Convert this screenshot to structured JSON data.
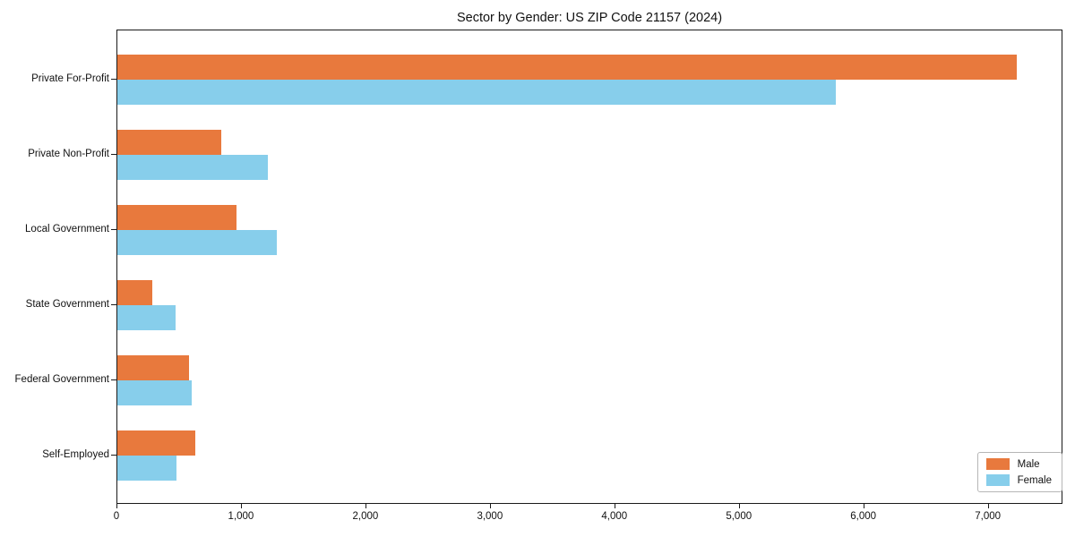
{
  "chart_data": {
    "type": "bar",
    "orientation": "horizontal",
    "title": "Sector by Gender: US ZIP Code 21157 (2024)",
    "categories": [
      "Private For-Profit",
      "Private Non-Profit",
      "Local Government",
      "State Government",
      "Federal Government",
      "Self-Employed"
    ],
    "series": [
      {
        "name": "Male",
        "color": "#E8793D",
        "values": [
          7240,
          840,
          960,
          280,
          580,
          625
        ]
      },
      {
        "name": "Female",
        "color": "#87CEEB",
        "values": [
          5780,
          1210,
          1280,
          470,
          600,
          475
        ]
      }
    ],
    "xlabel": "",
    "ylabel": "",
    "xlim": [
      0,
      7600
    ],
    "x_ticks": [
      0,
      1000,
      2000,
      3000,
      4000,
      5000,
      6000,
      7000
    ],
    "x_tick_labels": [
      "0",
      "1,000",
      "2,000",
      "3,000",
      "4,000",
      "5,000",
      "6,000",
      "7,000"
    ],
    "grid": false,
    "legend": {
      "position": "lower right",
      "entries": [
        {
          "label": "Male",
          "color": "#E8793D"
        },
        {
          "label": "Female",
          "color": "#87CEEB"
        }
      ]
    }
  }
}
